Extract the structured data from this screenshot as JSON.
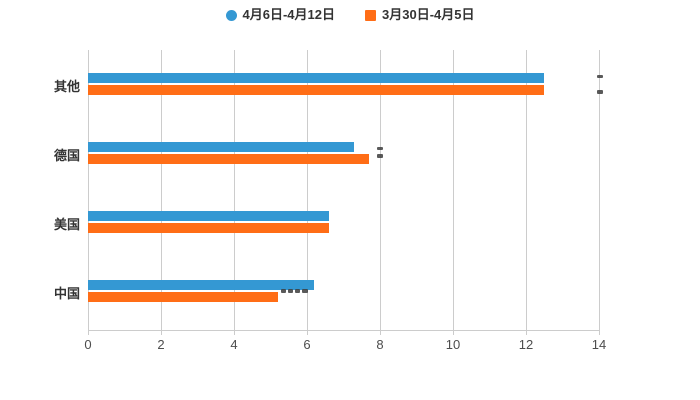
{
  "legend": {
    "items": [
      {
        "label": "4月6日-4月12日",
        "color": "#3498D3",
        "shape": "circle"
      },
      {
        "label": "3月30日-4月5日",
        "color": "#FF6D16",
        "shape": "square"
      }
    ]
  },
  "chart_data": {
    "type": "bar",
    "orientation": "horizontal",
    "title": "",
    "xlabel": "",
    "ylabel": "",
    "categories": [
      "其他",
      "德国",
      "美国",
      "中国"
    ],
    "series": [
      {
        "name": "4月6日-4月12日",
        "color": "#3498D3",
        "values": [
          12.5,
          7.3,
          6.6,
          6.2
        ]
      },
      {
        "name": "3月30日-4月5日",
        "color": "#FF6D16",
        "values": [
          12.5,
          7.7,
          6.6,
          5.2
        ]
      }
    ],
    "xlim": [
      0,
      14
    ],
    "xticks": [
      0,
      2,
      4,
      6,
      8,
      10,
      12,
      14
    ],
    "grid": "vertical-gridlines-on",
    "legend_position": "top-center",
    "colors": {
      "gridline": "#cccccc",
      "axis_line": "#cccccc",
      "tick_label": "#4d4d4d",
      "category_label": "#333333",
      "legend_label": "#333333",
      "background": "#ffffff"
    }
  }
}
